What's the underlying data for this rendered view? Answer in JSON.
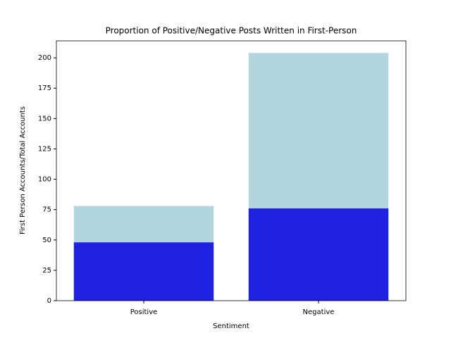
{
  "chart_data": {
    "type": "bar",
    "title": "Proportion of Positive/Negative Posts Written in First-Person",
    "x_label": "Sentiment",
    "y_label": "First Person Accounts/Total Accounts",
    "categories": [
      "Positive",
      "Negative"
    ],
    "series": [
      {
        "color": "#b3d5e0",
        "values": [
          78,
          204
        ]
      },
      {
        "color": "#2020e0",
        "values": [
          48,
          76
        ]
      }
    ],
    "ylim": [
      0,
      214
    ],
    "yticks": [
      0,
      25,
      50,
      75,
      100,
      125,
      150,
      175,
      200
    ]
  }
}
